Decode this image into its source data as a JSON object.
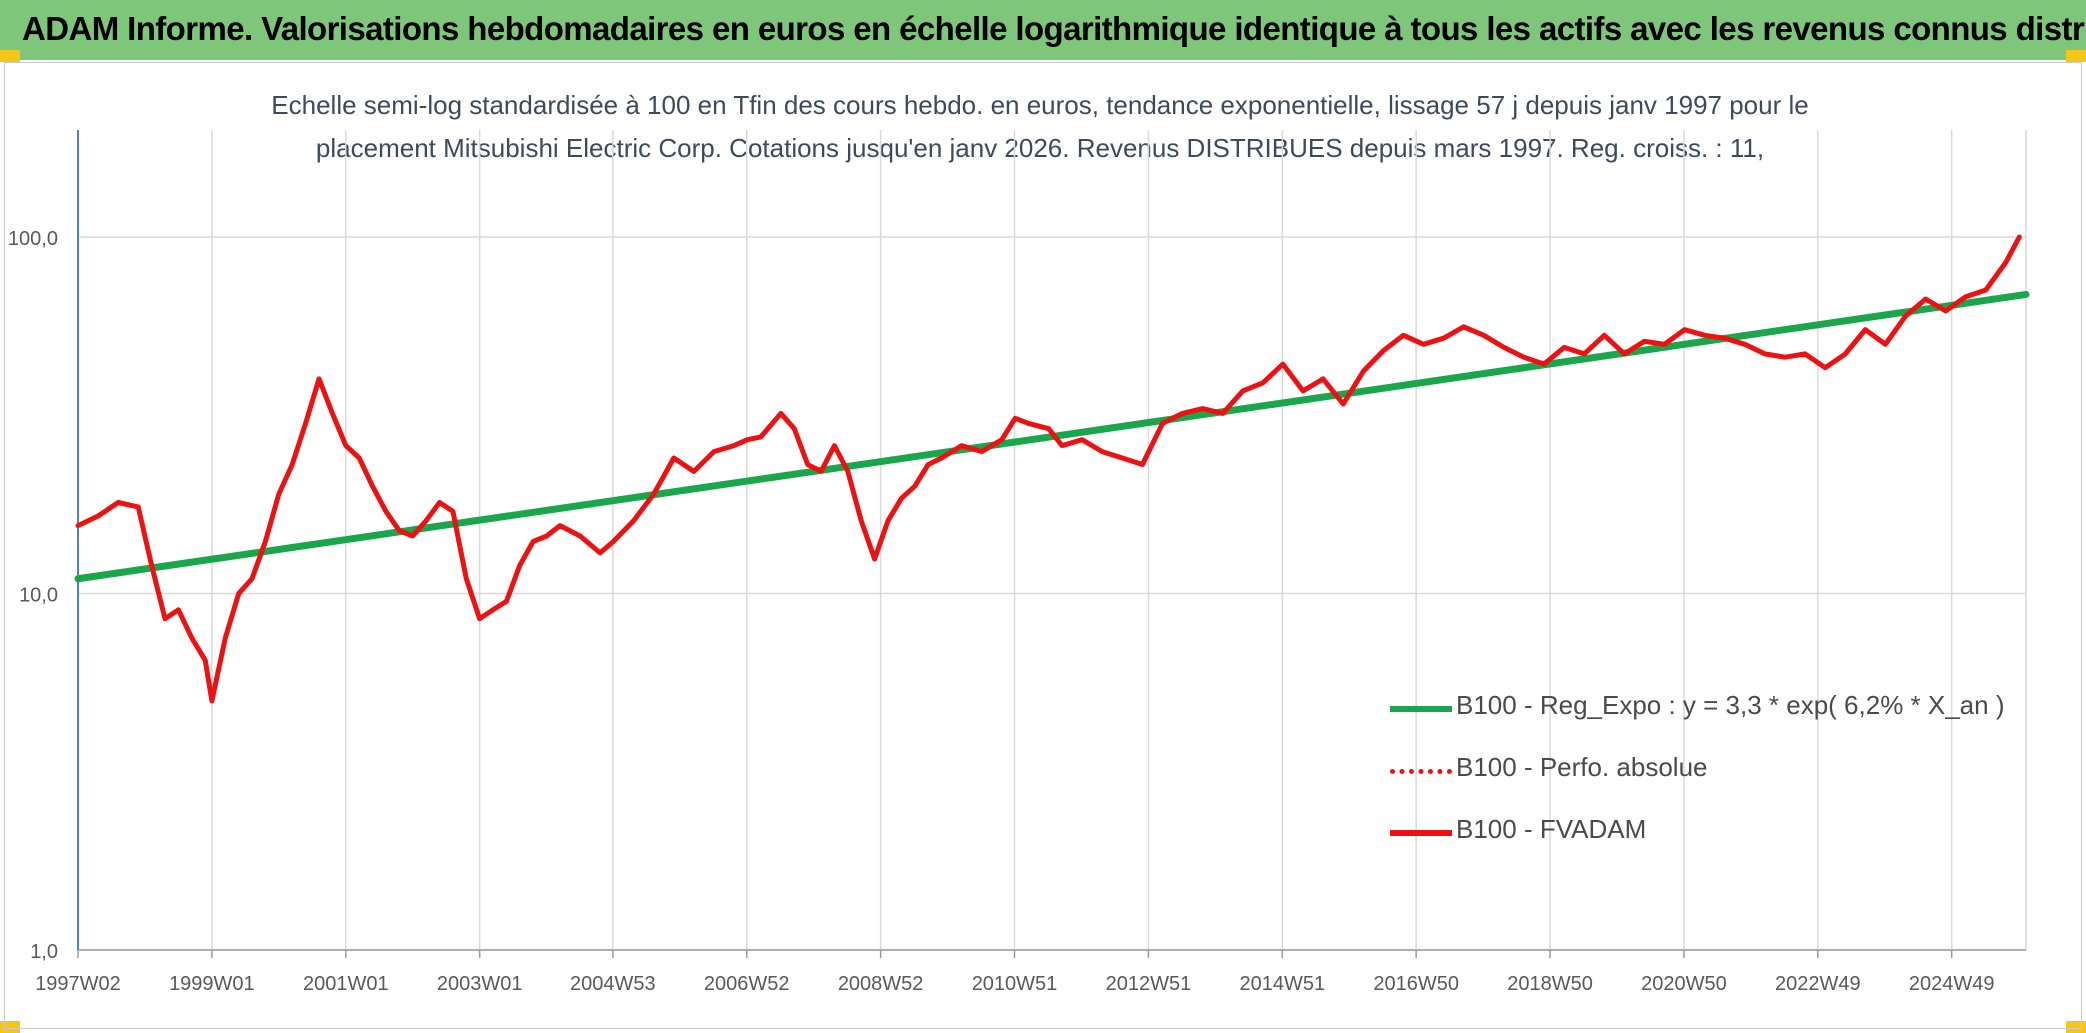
{
  "header": {
    "title": "ADAM Informe. Valorisations hebdomadaires en euros en échelle logarithmique identique à tous les actifs avec les revenus connus distribués"
  },
  "colors": {
    "header_bg": "#7dc67a",
    "trend": "#1aa64a",
    "price": "#ee1111",
    "grid": "#d9d9d9",
    "axis": "#4f81bd",
    "text": "#3d4a5c"
  },
  "chart_data": {
    "type": "line",
    "scale": "log",
    "title_line1": "Echelle semi-log standardisée à 100 en Tfin des cours hebdo. en euros, tendance exponentielle, lissage 57 j depuis janv 1997 pour le",
    "title_line2": "placement Mitsubishi Electric Corp. Cotations jusqu'en janv 2026. Revenus DISTRIBUES depuis mars 1997. Reg. croiss. : 11,",
    "y_ticks": [
      {
        "value": 1,
        "label": "1,0"
      },
      {
        "value": 10,
        "label": "10,0"
      },
      {
        "value": 100,
        "label": "100,0"
      }
    ],
    "ylim": [
      1,
      100
    ],
    "xlim": [
      1997.0,
      2026.1
    ],
    "x_ticks": [
      {
        "year": 1997.0,
        "label": "1997W02"
      },
      {
        "year": 1999.0,
        "label": "1999W01"
      },
      {
        "year": 2001.0,
        "label": "2001W01"
      },
      {
        "year": 2003.0,
        "label": "2003W01"
      },
      {
        "year": 2004.99,
        "label": "2004W53"
      },
      {
        "year": 2006.99,
        "label": "2006W52"
      },
      {
        "year": 2008.99,
        "label": "2008W52"
      },
      {
        "year": 2010.99,
        "label": "2010W51"
      },
      {
        "year": 2012.99,
        "label": "2012W51"
      },
      {
        "year": 2014.99,
        "label": "2014W51"
      },
      {
        "year": 2016.99,
        "label": "2016W50"
      },
      {
        "year": 2018.99,
        "label": "2018W50"
      },
      {
        "year": 2020.99,
        "label": "2020W50"
      },
      {
        "year": 2022.99,
        "label": "2022W49"
      },
      {
        "year": 2024.99,
        "label": "2024W49"
      }
    ],
    "legend": [
      {
        "name": "B100 - Reg_Expo : y = 3,3 * exp( 6,2% *  X_an )",
        "style": "solid-green"
      },
      {
        "name": "B100 - Perfo. absolue",
        "style": "dotted-red"
      },
      {
        "name": "B100 - FVADAM",
        "style": "solid-red"
      }
    ],
    "series": [
      {
        "name": "B100 - Reg_Expo : y = 3,3 * exp( 6,2% *  X_an )",
        "x": [
          1997.0,
          2026.1
        ],
        "values": [
          11.0,
          69.0
        ]
      },
      {
        "name": "B100 - FVADAM",
        "x": [
          1997.0,
          1997.3,
          1997.6,
          1997.9,
          1998.1,
          1998.3,
          1998.5,
          1998.7,
          1998.9,
          1999.0,
          1999.2,
          1999.4,
          1999.6,
          1999.8,
          2000.0,
          2000.2,
          2000.4,
          2000.6,
          2000.8,
          2001.0,
          2001.2,
          2001.4,
          2001.6,
          2001.8,
          2002.0,
          2002.2,
          2002.4,
          2002.6,
          2002.8,
          2003.0,
          2003.2,
          2003.4,
          2003.6,
          2003.8,
          2004.0,
          2004.2,
          2004.5,
          2004.8,
          2005.0,
          2005.3,
          2005.6,
          2005.9,
          2006.2,
          2006.5,
          2006.8,
          2007.0,
          2007.2,
          2007.5,
          2007.7,
          2007.9,
          2008.1,
          2008.3,
          2008.5,
          2008.7,
          2008.9,
          2009.1,
          2009.3,
          2009.5,
          2009.7,
          2009.9,
          2010.2,
          2010.5,
          2010.8,
          2011.0,
          2011.2,
          2011.5,
          2011.7,
          2012.0,
          2012.3,
          2012.6,
          2012.9,
          2013.2,
          2013.5,
          2013.8,
          2014.1,
          2014.4,
          2014.7,
          2015.0,
          2015.3,
          2015.6,
          2015.9,
          2016.2,
          2016.5,
          2016.8,
          2017.1,
          2017.4,
          2017.7,
          2018.0,
          2018.3,
          2018.6,
          2018.9,
          2019.2,
          2019.5,
          2019.8,
          2020.1,
          2020.4,
          2020.7,
          2021.0,
          2021.3,
          2021.6,
          2021.9,
          2022.2,
          2022.5,
          2022.8,
          2023.1,
          2023.4,
          2023.7,
          2024.0,
          2024.3,
          2024.6,
          2024.9,
          2025.2,
          2025.5,
          2025.8,
          2026.0
        ],
        "values": [
          15.5,
          16.5,
          18.0,
          17.5,
          12.0,
          8.5,
          9.0,
          7.5,
          6.5,
          5.0,
          7.5,
          10.0,
          11.0,
          14.0,
          19.0,
          23.0,
          30.0,
          40.0,
          32.0,
          26.0,
          24.0,
          20.0,
          17.0,
          15.0,
          14.5,
          16.0,
          18.0,
          17.0,
          11.0,
          8.5,
          9.0,
          9.5,
          12.0,
          14.0,
          14.5,
          15.5,
          14.5,
          13.0,
          14.0,
          16.0,
          19.0,
          24.0,
          22.0,
          25.0,
          26.0,
          27.0,
          27.5,
          32.0,
          29.0,
          23.0,
          22.0,
          26.0,
          22.0,
          16.0,
          12.5,
          16.0,
          18.5,
          20.0,
          23.0,
          24.0,
          26.0,
          25.0,
          27.0,
          31.0,
          30.0,
          29.0,
          26.0,
          27.0,
          25.0,
          24.0,
          23.0,
          30.0,
          32.0,
          33.0,
          32.0,
          37.0,
          39.0,
          44.0,
          37.0,
          40.0,
          34.0,
          42.0,
          48.0,
          53.0,
          50.0,
          52.0,
          56.0,
          53.0,
          49.0,
          46.0,
          44.0,
          49.0,
          47.0,
          53.0,
          47.0,
          51.0,
          50.0,
          55.0,
          53.0,
          52.0,
          50.0,
          47.0,
          46.0,
          47.0,
          43.0,
          47.0,
          55.0,
          50.0,
          60.0,
          67.0,
          62.0,
          68.0,
          71.0,
          85.0,
          100.0
        ]
      }
    ]
  }
}
